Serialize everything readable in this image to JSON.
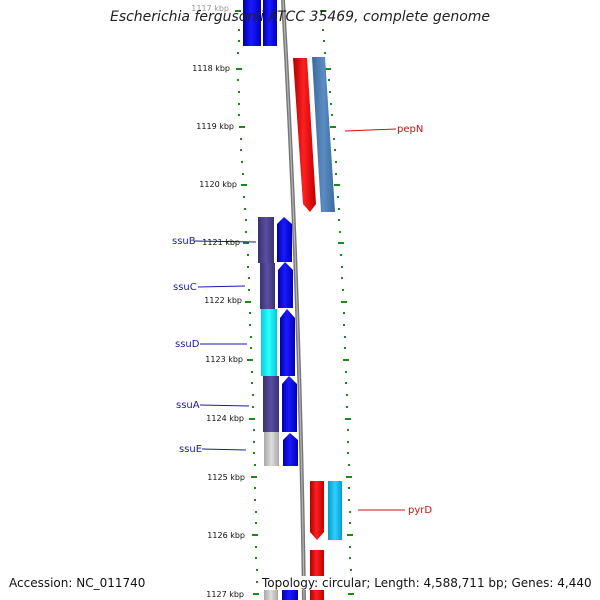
{
  "title": "Escherichia fergusonii ATCC 35469, complete genome",
  "footer": {
    "accession": "Accession: NC_011740",
    "summary": "Topology: circular; Length: 4,588,711 bp; Genes: 4,440"
  },
  "colors": {
    "tick": "#1b8a1b",
    "backbone": "#7a7a7a",
    "forward_label": "#1a1aa6",
    "reverse_label": "#cc1111"
  },
  "scale_labels": [
    "1117 kbp",
    "1118 kbp",
    "1119 kbp",
    "1120 kbp",
    "1121 kbp",
    "1122 kbp",
    "1123 kbp",
    "1124 kbp",
    "1125 kbp",
    "1126 kbp",
    "1127 kbp"
  ],
  "genes": [
    {
      "label": "pepN",
      "strand": "reverse",
      "color": "#e00000",
      "related_color": "#4f7fb3"
    },
    {
      "label": "ssuB",
      "strand": "forward",
      "color": "#0000ee",
      "related_color": "#4a3f8c"
    },
    {
      "label": "ssuC",
      "strand": "forward",
      "color": "#0000ee",
      "related_color": "#4a3f8c"
    },
    {
      "label": "ssuD",
      "strand": "forward",
      "color": "#0000ee",
      "related_color": "#00e5ee"
    },
    {
      "label": "ssuA",
      "strand": "forward",
      "color": "#0000ee",
      "related_color": "#4a3f8c"
    },
    {
      "label": "ssuE",
      "strand": "forward",
      "color": "#0000ee",
      "related_color": "#c0c0c0"
    },
    {
      "label": "pyrD",
      "strand": "reverse",
      "color": "#e00000",
      "related_color": "#00b4e0"
    }
  ]
}
